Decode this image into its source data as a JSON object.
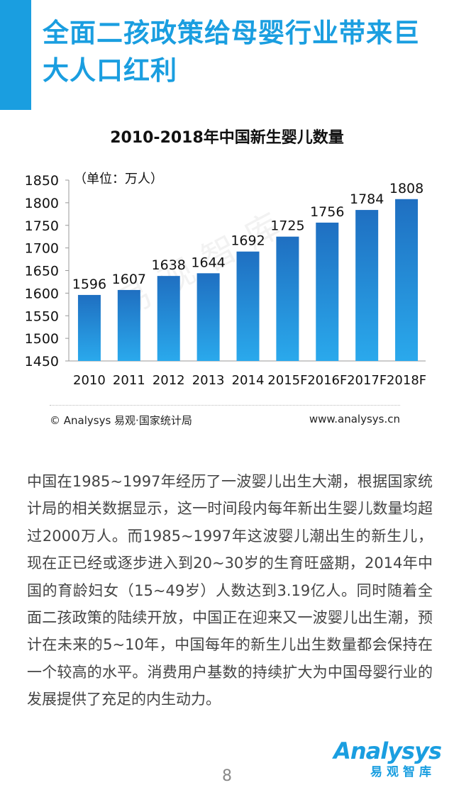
{
  "header": {
    "title_line1": "全面二孩政策给母婴行业带来巨",
    "title_line2": "大人口红利",
    "accent_color": "#1a9ee0"
  },
  "chart_data": {
    "type": "bar",
    "title": "2010-2018年中国新生婴儿数量",
    "unit_note": "（单位：万人）",
    "categories": [
      "2010",
      "2011",
      "2012",
      "2013",
      "2014",
      "2015F",
      "2016F",
      "2017F",
      "2018F"
    ],
    "values": [
      1596,
      1607,
      1638,
      1644,
      1692,
      1725,
      1756,
      1784,
      1808
    ],
    "ylim": [
      1450,
      1850
    ],
    "yticks": [
      1450,
      1500,
      1550,
      1600,
      1650,
      1700,
      1750,
      1800,
      1850
    ],
    "bar_color_top": "#1f6fc1",
    "bar_color_bottom": "#2aa9ec",
    "grid": false,
    "xlabel": "",
    "ylabel": ""
  },
  "source": {
    "left": "© Analysys 易观·国家统计局",
    "right": "www.analysys.cn"
  },
  "watermark": "易观智库",
  "body_text": "中国在1985~1997年经历了一波婴儿出生大潮，根据国家统计局的相关数据显示，这一时间段内每年新出生婴儿数量均超过2000万人。而1985~1997年这波婴儿潮出生的新生儿，现在正已经或逐步进入到20~30岁的生育旺盛期，2014年中国的育龄妇女（15~49岁）人数达到3.19亿人。同时随着全面二孩政策的陆续开放，中国正在迎来又一波婴儿出生潮，预计在未来的5~10年，中国每年的新生儿出生数量都会保持在一个较高的水平。消费用户基数的持续扩大为中国母婴行业的发展提供了充足的内生动力。",
  "logo": {
    "word": "Analysys",
    "cn": "易观智库"
  },
  "page_number": "8"
}
